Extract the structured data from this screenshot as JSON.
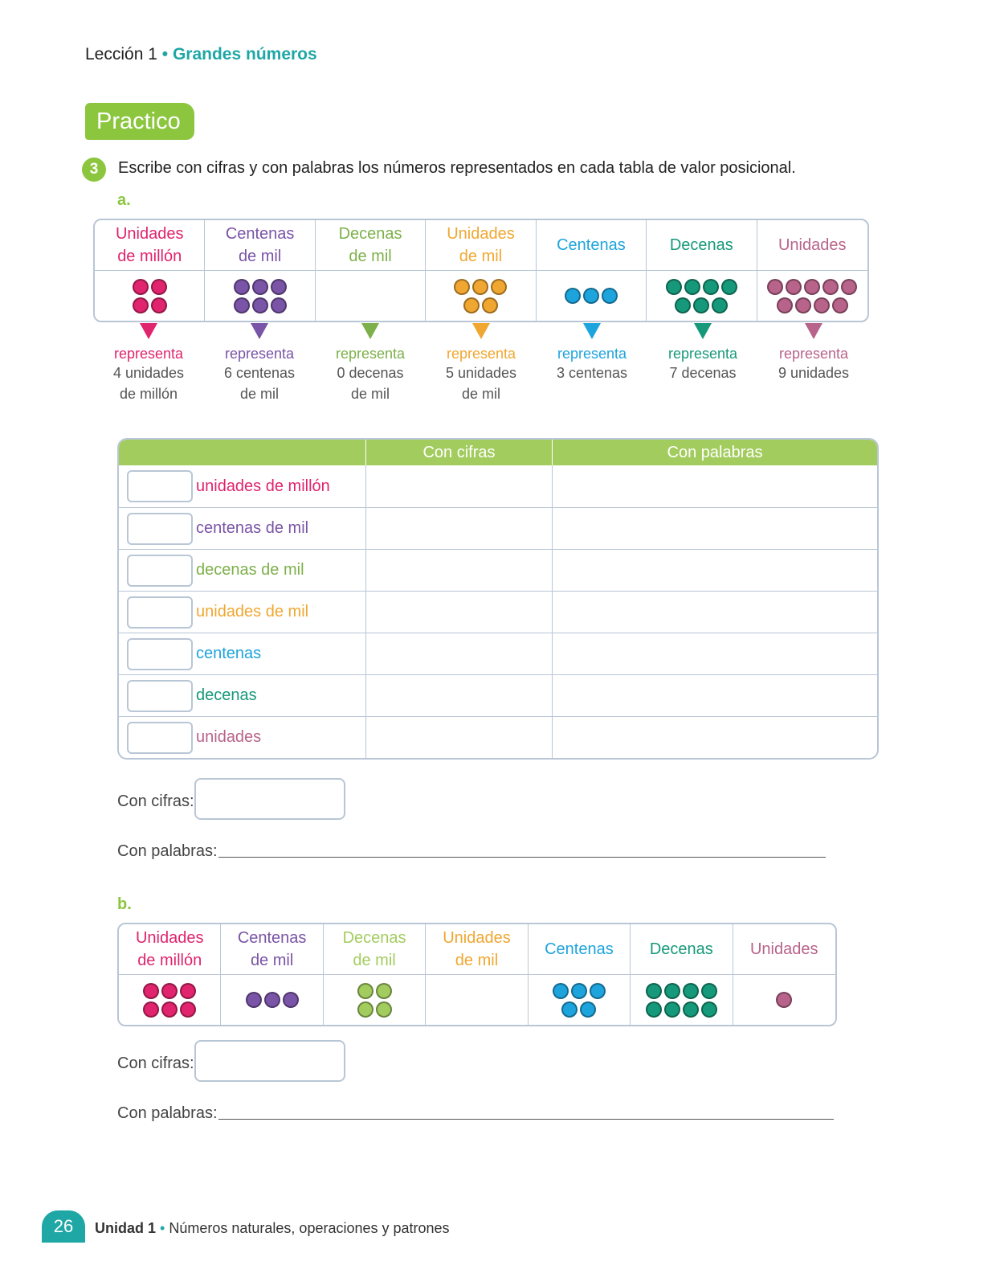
{
  "lesson": {
    "label": "Lección 1",
    "separator": "•",
    "title": "Grandes números"
  },
  "section_tag": "Practico",
  "question": {
    "number": "3",
    "text": "Escribe con cifras y con palabras los números representados en cada tabla de valor posicional."
  },
  "part_a": {
    "label": "a.",
    "columns": [
      {
        "line1": "Unidades",
        "line2": "de millón",
        "color": "#e0246d",
        "count": 4,
        "per_row": 2
      },
      {
        "line1": "Centenas",
        "line2": "de mil",
        "color": "#7a54a6",
        "count": 6,
        "per_row": 3
      },
      {
        "line1": "Decenas",
        "line2": "de mil",
        "color": "#7db04a",
        "count": 0,
        "per_row": 3
      },
      {
        "line1": "Unidades",
        "line2": "de mil",
        "color": "#f0a731",
        "count": 5,
        "per_row": 3
      },
      {
        "line1": "Centenas",
        "line2": "",
        "color": "#1ea4dc",
        "count": 3,
        "per_row": 3
      },
      {
        "line1": "Decenas",
        "line2": "",
        "color": "#16997a",
        "count": 7,
        "per_row": 4
      },
      {
        "line1": "Unidades",
        "line2": "",
        "color": "#b8638a",
        "count": 9,
        "per_row": 5
      }
    ],
    "arrows": [
      {
        "rep": "representa",
        "desc1": "4 unidades",
        "desc2": "de millón"
      },
      {
        "rep": "representa",
        "desc1": "6 centenas",
        "desc2": "de mil"
      },
      {
        "rep": "representa",
        "desc1": "0 decenas",
        "desc2": "de mil"
      },
      {
        "rep": "representa",
        "desc1": "5 unidades",
        "desc2": "de mil"
      },
      {
        "rep": "representa",
        "desc1": "3 centenas",
        "desc2": ""
      },
      {
        "rep": "representa",
        "desc1": "7 decenas",
        "desc2": ""
      },
      {
        "rep": "representa",
        "desc1": "9 unidades",
        "desc2": ""
      }
    ],
    "answer_table": {
      "headers": [
        "",
        "Con cifras",
        "Con palabras"
      ],
      "rows": [
        {
          "label": "unidades de millón",
          "color": "#e0246d"
        },
        {
          "label": "centenas de mil",
          "color": "#7a54a6"
        },
        {
          "label": "decenas de mil",
          "color": "#7db04a"
        },
        {
          "label": "unidades de mil",
          "color": "#f0a731"
        },
        {
          "label": "centenas",
          "color": "#1ea4dc"
        },
        {
          "label": "decenas",
          "color": "#16997a"
        },
        {
          "label": "unidades",
          "color": "#b8638a"
        }
      ]
    },
    "con_cifras": "Con cifras:",
    "con_palabras": "Con palabras:"
  },
  "part_b": {
    "label": "b.",
    "columns": [
      {
        "line1": "Unidades",
        "line2": "de millón",
        "color": "#e0246d",
        "count": 6,
        "per_row": 3
      },
      {
        "line1": "Centenas",
        "line2": "de mil",
        "color": "#7a54a6",
        "count": 3,
        "per_row": 3
      },
      {
        "line1": "Decenas",
        "line2": "de mil",
        "color": "#a3cc5f",
        "count": 4,
        "per_row": 2
      },
      {
        "line1": "Unidades",
        "line2": "de mil",
        "color": "#f0a731",
        "count": 0,
        "per_row": 3
      },
      {
        "line1": "Centenas",
        "line2": "",
        "color": "#1ea4dc",
        "count": 5,
        "per_row": 3
      },
      {
        "line1": "Decenas",
        "line2": "",
        "color": "#16997a",
        "count": 8,
        "per_row": 4
      },
      {
        "line1": "Unidades",
        "line2": "",
        "color": "#b8638a",
        "count": 1,
        "per_row": 1
      }
    ],
    "con_cifras": "Con cifras:",
    "con_palabras": "Con palabras:"
  },
  "footer": {
    "page": "26",
    "unit": "Unidad 1",
    "separator": "•",
    "topic": "Números naturales, operaciones y patrones"
  }
}
